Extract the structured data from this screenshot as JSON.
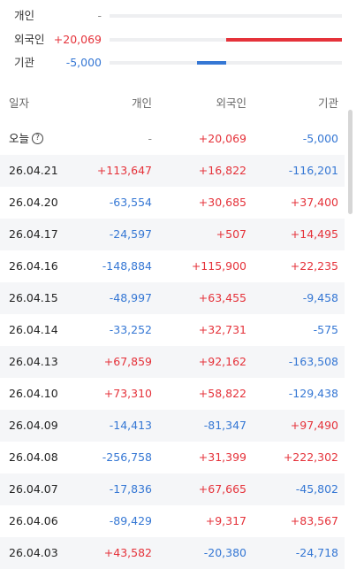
{
  "summary": [
    {
      "label": "개인",
      "value": null,
      "value_label": "-"
    },
    {
      "label": "외국인",
      "value": 20069,
      "value_label": "+20,069"
    },
    {
      "label": "기관",
      "value": -5000,
      "value_label": "-5,000"
    }
  ],
  "table": {
    "header": [
      "일자",
      "개인",
      "외국인",
      "기관"
    ],
    "rows": [
      [
        "오늘",
        "-",
        "+20,069",
        "-5,000"
      ],
      [
        "26.04.21",
        "+113,647",
        "+16,822",
        "-116,201"
      ],
      [
        "26.04.20",
        "-63,554",
        "+30,685",
        "+37,400"
      ],
      [
        "26.04.17",
        "-24,597",
        "+507",
        "+14,495"
      ],
      [
        "26.04.16",
        "-148,884",
        "+115,900",
        "+22,235"
      ],
      [
        "26.04.15",
        "-48,997",
        "+63,455",
        "-9,458"
      ],
      [
        "26.04.14",
        "-33,252",
        "+32,731",
        "-575"
      ],
      [
        "26.04.13",
        "+67,859",
        "+92,162",
        "-163,508"
      ],
      [
        "26.04.10",
        "+73,310",
        "+58,822",
        "-129,438"
      ],
      [
        "26.04.09",
        "-14,413",
        "-81,347",
        "+97,490"
      ],
      [
        "26.04.08",
        "-256,758",
        "+31,399",
        "+222,302"
      ],
      [
        "26.04.07",
        "-17,836",
        "+67,665",
        "-45,802"
      ],
      [
        "26.04.06",
        "-89,429",
        "+9,317",
        "+83,567"
      ],
      [
        "26.04.03",
        "+43,582",
        "-20,380",
        "-24,718"
      ]
    ]
  }
}
